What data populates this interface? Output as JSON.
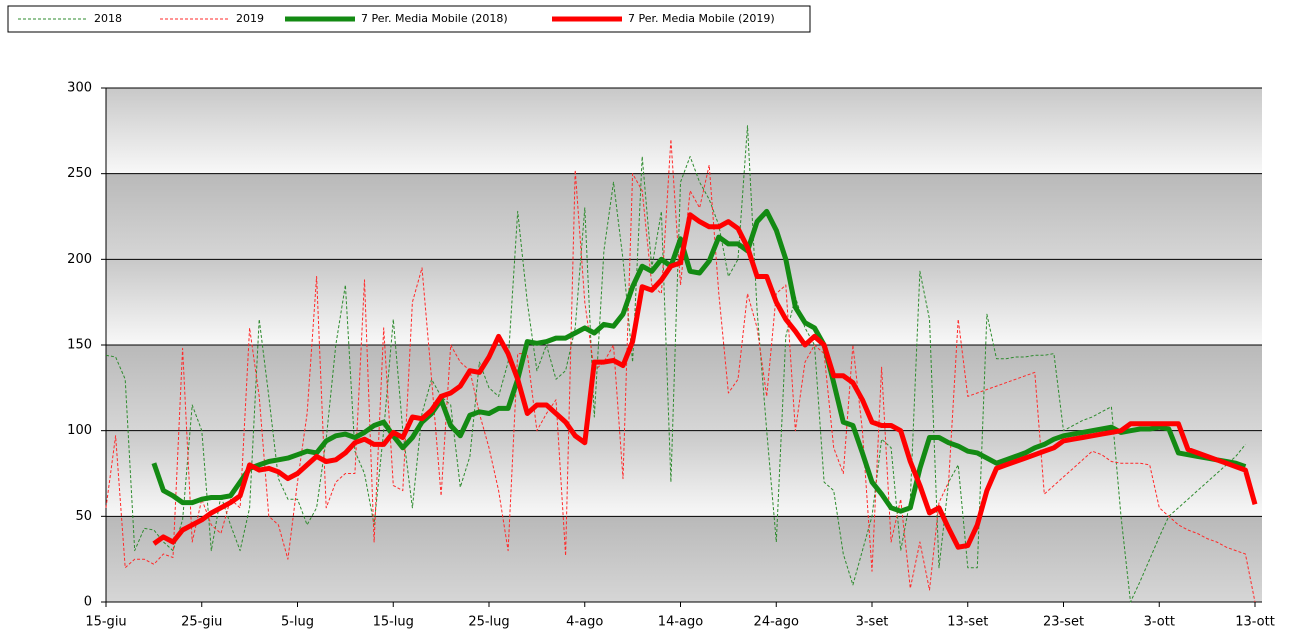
{
  "chart_data": {
    "type": "line",
    "categories": [
      "15-giu",
      null,
      null,
      null,
      null,
      null,
      null,
      null,
      null,
      null,
      "25-giu",
      null,
      null,
      null,
      null,
      null,
      null,
      null,
      null,
      null,
      "5-lug",
      null,
      null,
      null,
      null,
      null,
      null,
      null,
      null,
      null,
      "15-lug",
      null,
      null,
      null,
      null,
      null,
      null,
      null,
      null,
      null,
      "25-lug",
      null,
      null,
      null,
      null,
      null,
      null,
      null,
      null,
      null,
      "4-ago",
      null,
      null,
      null,
      null,
      null,
      null,
      null,
      null,
      null,
      "14-ago",
      null,
      null,
      null,
      null,
      null,
      null,
      null,
      null,
      null,
      "24-ago",
      null,
      null,
      null,
      null,
      null,
      null,
      null,
      null,
      null,
      "3-set",
      null,
      null,
      null,
      null,
      null,
      null,
      null,
      null,
      null,
      "13-set",
      null,
      null,
      null,
      null,
      null,
      null,
      null,
      null,
      null,
      "23-set",
      null,
      null,
      null,
      null,
      null,
      null,
      null,
      null,
      null,
      "3-ott",
      null,
      null,
      null,
      null,
      null,
      null,
      null,
      null,
      null,
      "13-ott"
    ],
    "series": [
      {
        "name": "2018",
        "color": "#2e8b2e",
        "style": "dashed",
        "width": 1,
        "values": [
          144,
          143,
          130,
          30,
          43,
          42,
          35,
          30,
          48,
          115,
          100,
          30,
          62,
          45,
          30,
          55,
          165,
          120,
          72,
          60,
          60,
          45,
          55,
          95,
          150,
          185,
          88,
          75,
          45,
          100,
          165,
          100,
          55,
          110,
          130,
          120,
          115,
          67,
          85,
          140,
          125,
          120,
          140,
          228,
          175,
          135,
          150,
          130,
          135,
          160,
          230,
          108,
          205,
          245,
          200,
          140,
          260,
          195,
          228,
          70,
          245,
          260,
          245,
          235,
          220,
          190,
          200,
          278,
          170,
          100,
          35,
          155,
          178,
          160,
          150,
          70,
          65,
          28,
          10,
          30,
          50,
          95,
          90,
          30,
          60,
          193,
          165,
          20,
          70,
          80,
          20,
          20,
          168,
          142,
          142,
          143,
          143,
          144,
          144,
          145,
          100,
          103,
          106,
          108,
          111,
          114,
          50,
          0,
          12,
          25,
          38,
          50,
          55,
          60,
          65,
          70,
          75,
          80,
          85,
          92,
          null
        ]
      },
      {
        "name": "2019",
        "color": "#ff2a2a",
        "style": "dashed",
        "width": 1,
        "values": [
          55,
          97,
          20,
          25,
          25,
          22,
          28,
          26,
          148,
          35,
          60,
          45,
          40,
          60,
          55,
          160,
          120,
          50,
          45,
          25,
          70,
          110,
          190,
          55,
          70,
          75,
          75,
          188,
          35,
          160,
          68,
          65,
          175,
          195,
          130,
          62,
          150,
          140,
          135,
          110,
          90,
          65,
          30,
          145,
          145,
          100,
          110,
          118,
          27,
          252,
          175,
          135,
          140,
          150,
          72,
          250,
          240,
          185,
          180,
          270,
          185,
          240,
          230,
          255,
          180,
          122,
          130,
          180,
          160,
          120,
          180,
          185,
          100,
          140,
          150,
          145,
          90,
          75,
          150,
          100,
          18,
          137,
          35,
          60,
          8,
          35,
          7,
          58,
          70,
          165,
          120,
          122,
          124,
          126,
          128,
          130,
          132,
          134,
          63,
          68,
          73,
          78,
          83,
          88,
          86,
          82,
          81,
          81,
          81,
          80,
          55,
          50,
          45,
          42,
          40,
          37,
          35,
          32,
          30,
          28,
          0
        ]
      },
      {
        "name": "7 Per. Media Mobile (2018)",
        "color": "#138a13",
        "style": "solid",
        "width": 5,
        "values": [
          null,
          null,
          null,
          null,
          null,
          81,
          65,
          62,
          58,
          58,
          60,
          61,
          61,
          62,
          70,
          78,
          80,
          82,
          83,
          84,
          86,
          88,
          87,
          94,
          97,
          98,
          96,
          99,
          103,
          105,
          97,
          90,
          96,
          105,
          110,
          118,
          103,
          97,
          109,
          111,
          110,
          113,
          113,
          130,
          152,
          151,
          152,
          154,
          154,
          157,
          160,
          157,
          162,
          161,
          168,
          184,
          196,
          193,
          200,
          196,
          212,
          193,
          192,
          199,
          213,
          209,
          209,
          205,
          222,
          228,
          217,
          200,
          172,
          163,
          160,
          150,
          128,
          105,
          103,
          87,
          70,
          63,
          55,
          53,
          55,
          78,
          96,
          96,
          93,
          91,
          88,
          87,
          84,
          81,
          83,
          85,
          87,
          90,
          92,
          95,
          97,
          98,
          99,
          100,
          101,
          102,
          99,
          100,
          101,
          101,
          102,
          101,
          87,
          86,
          85,
          84,
          83,
          82,
          81,
          79,
          null
        ]
      },
      {
        "name": "7 Per. Media Mobile (2019)",
        "color": "#ff0000",
        "style": "solid",
        "width": 5,
        "values": [
          null,
          null,
          null,
          null,
          null,
          34,
          38,
          35,
          42,
          45,
          48,
          52,
          55,
          58,
          62,
          80,
          77,
          78,
          76,
          72,
          75,
          80,
          85,
          82,
          83,
          87,
          93,
          95,
          92,
          92,
          99,
          96,
          108,
          107,
          112,
          120,
          122,
          126,
          135,
          134,
          143,
          155,
          145,
          130,
          110,
          115,
          115,
          110,
          105,
          97,
          93,
          140,
          140,
          141,
          138,
          152,
          184,
          182,
          188,
          196,
          198,
          226,
          222,
          219,
          219,
          222,
          218,
          207,
          190,
          190,
          175,
          165,
          158,
          150,
          155,
          150,
          132,
          132,
          128,
          118,
          105,
          103,
          103,
          100,
          82,
          68,
          52,
          55,
          43,
          32,
          33,
          45,
          65,
          78,
          80,
          82,
          84,
          86,
          88,
          90,
          94,
          95,
          96,
          97,
          98,
          99,
          100,
          104,
          104,
          104,
          104,
          104,
          104,
          89,
          87,
          85,
          83,
          81,
          79,
          77,
          57
        ]
      }
    ],
    "ylim": [
      0,
      300
    ],
    "yticks": [
      0,
      50,
      100,
      150,
      200,
      250,
      300
    ],
    "grid": true
  }
}
